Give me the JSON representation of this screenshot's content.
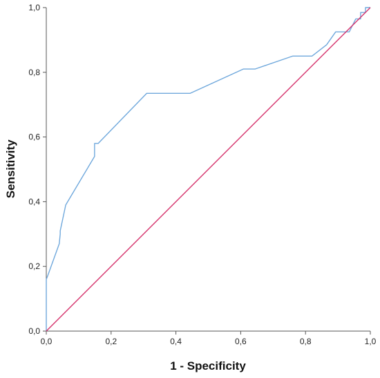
{
  "chart_data": {
    "type": "line",
    "xlabel": "1 - Specificity",
    "ylabel": "Sensitivity",
    "xlim": [
      0,
      1
    ],
    "ylim": [
      0,
      1
    ],
    "x_tick_labels": [
      "0,0",
      "0,2",
      "0,4",
      "0,6",
      "0,8",
      "1,0"
    ],
    "y_tick_labels": [
      "0,0",
      "0,2",
      "0,4",
      "0,6",
      "0,8",
      "1,0"
    ],
    "x_ticks": [
      0,
      0.2,
      0.4,
      0.6,
      0.8,
      1.0
    ],
    "y_ticks": [
      0,
      0.2,
      0.4,
      0.6,
      0.8,
      1.0
    ],
    "grid": false,
    "series": [
      {
        "color": "#6fa8dc",
        "x": [
          0,
          0,
          0.004,
          0.04,
          0.043,
          0.043,
          0.06,
          0.149,
          0.149,
          0.16,
          0.31,
          0.444,
          0.608,
          0.644,
          0.76,
          0.82,
          0.865,
          0.893,
          0.935,
          0.955,
          0.97,
          0.97,
          0.985,
          0.985,
          1.0
        ],
        "y": [
          0,
          0.16,
          0.17,
          0.27,
          0.3,
          0.31,
          0.39,
          0.54,
          0.58,
          0.58,
          0.735,
          0.735,
          0.81,
          0.81,
          0.85,
          0.85,
          0.885,
          0.925,
          0.925,
          0.965,
          0.965,
          0.985,
          0.985,
          1.0,
          1.0
        ]
      },
      {
        "color": "#d6336c",
        "x": [
          0,
          1
        ],
        "y": [
          0,
          1
        ]
      }
    ]
  }
}
